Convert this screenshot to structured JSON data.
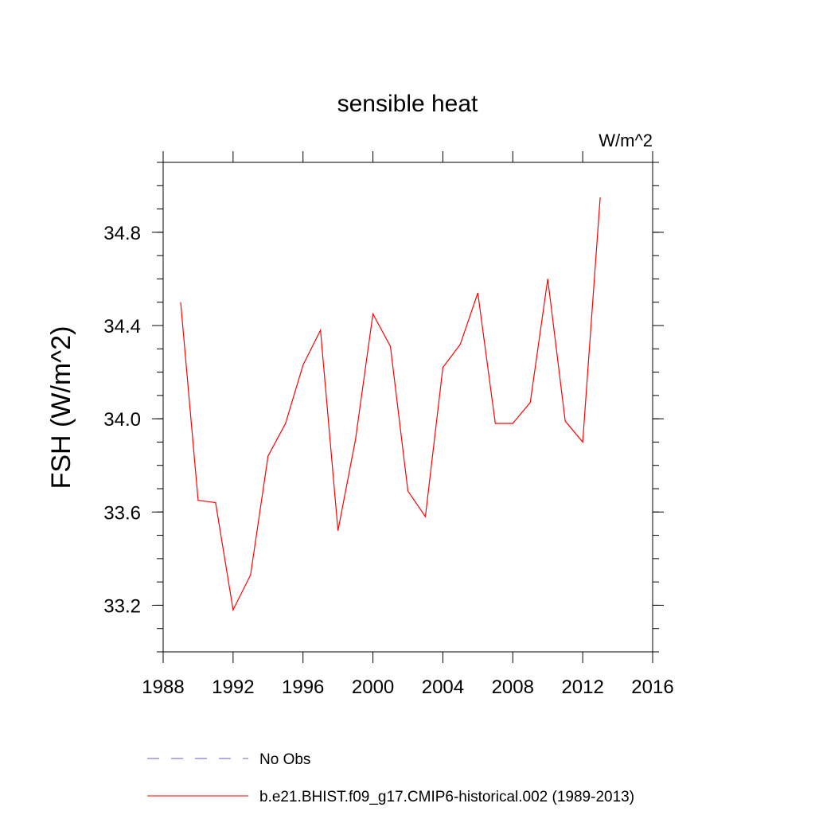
{
  "chart_data": {
    "type": "line",
    "title": "sensible heat",
    "units": "W/m^2",
    "ylabel": "FSH  (W/m^2)",
    "xlabel": "",
    "xlim": [
      1988,
      2016
    ],
    "ylim": [
      33.0,
      35.1
    ],
    "x_ticks": [
      "1988",
      "1992",
      "1996",
      "2000",
      "2004",
      "2008",
      "2012",
      "2016"
    ],
    "y_ticks": [
      "33.2",
      "33.6",
      "34.0",
      "34.4",
      "34.8"
    ],
    "grid": false,
    "legend_placement": "bottom",
    "series": [
      {
        "name": "b.e21.BHIST.f09_g17.CMIP6-historical.002 (1989-2013)",
        "color": "#ff0000",
        "style": "solid",
        "x": [
          1989,
          1990,
          1991,
          1992,
          1993,
          1994,
          1995,
          1996,
          1997,
          1998,
          1999,
          2000,
          2001,
          2002,
          2003,
          2004,
          2005,
          2006,
          2007,
          2008,
          2009,
          2010,
          2011,
          2012,
          2013
        ],
        "y": [
          34.5,
          33.65,
          33.64,
          33.18,
          33.33,
          33.84,
          33.98,
          34.23,
          34.38,
          33.52,
          33.91,
          34.45,
          34.31,
          33.69,
          33.58,
          34.22,
          34.32,
          34.54,
          33.98,
          33.98,
          34.07,
          34.6,
          33.99,
          33.9,
          34.95
        ]
      },
      {
        "name": "No Obs",
        "color": "#6a5acd",
        "style": "dashed",
        "x": [],
        "y": []
      }
    ]
  }
}
